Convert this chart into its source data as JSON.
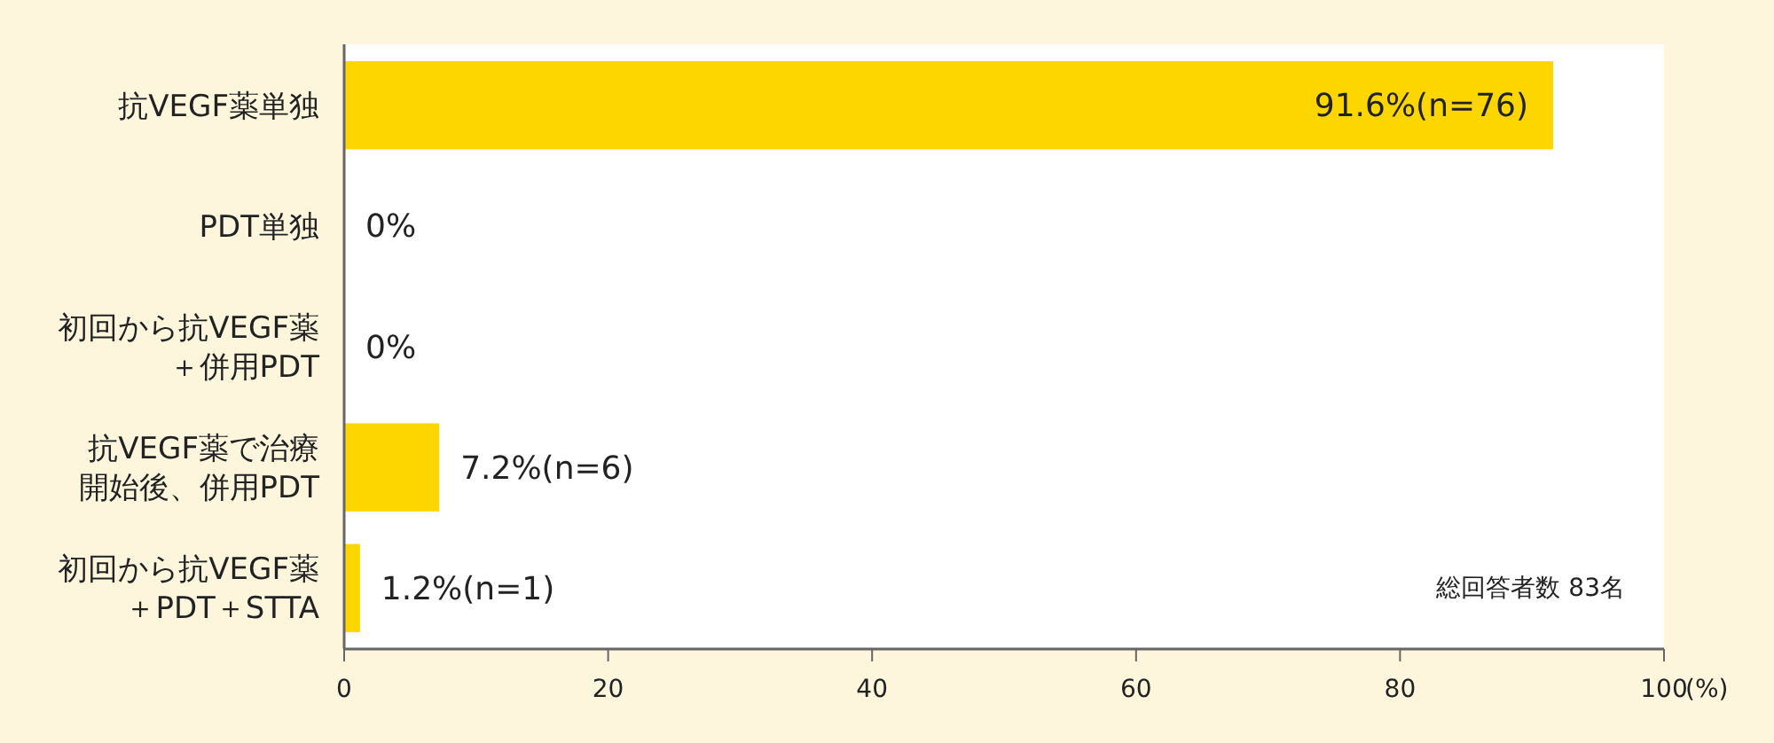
{
  "chart_data": {
    "type": "bar",
    "orientation": "horizontal",
    "categories": [
      "抗VEGF薬単独",
      "PDT単独",
      "初回から抗VEGF薬＋併用PDT",
      "抗VEGF薬で治療開始後、併用PDT",
      "初回から抗VEGF薬＋PDT＋STTA"
    ],
    "values": [
      91.6,
      0,
      0,
      7.2,
      1.2
    ],
    "value_labels": [
      "91.6%(n=76)",
      "0%",
      "0%",
      "7.2%(n=6)",
      "1.2%(n=1)"
    ],
    "color": "#fdd600",
    "xlim": [
      0,
      100
    ],
    "xticks": [
      0,
      20,
      40,
      60,
      80,
      100
    ],
    "xlabel": "(%)",
    "annotations": [
      "総回答者数 83名"
    ],
    "grid": false
  }
}
